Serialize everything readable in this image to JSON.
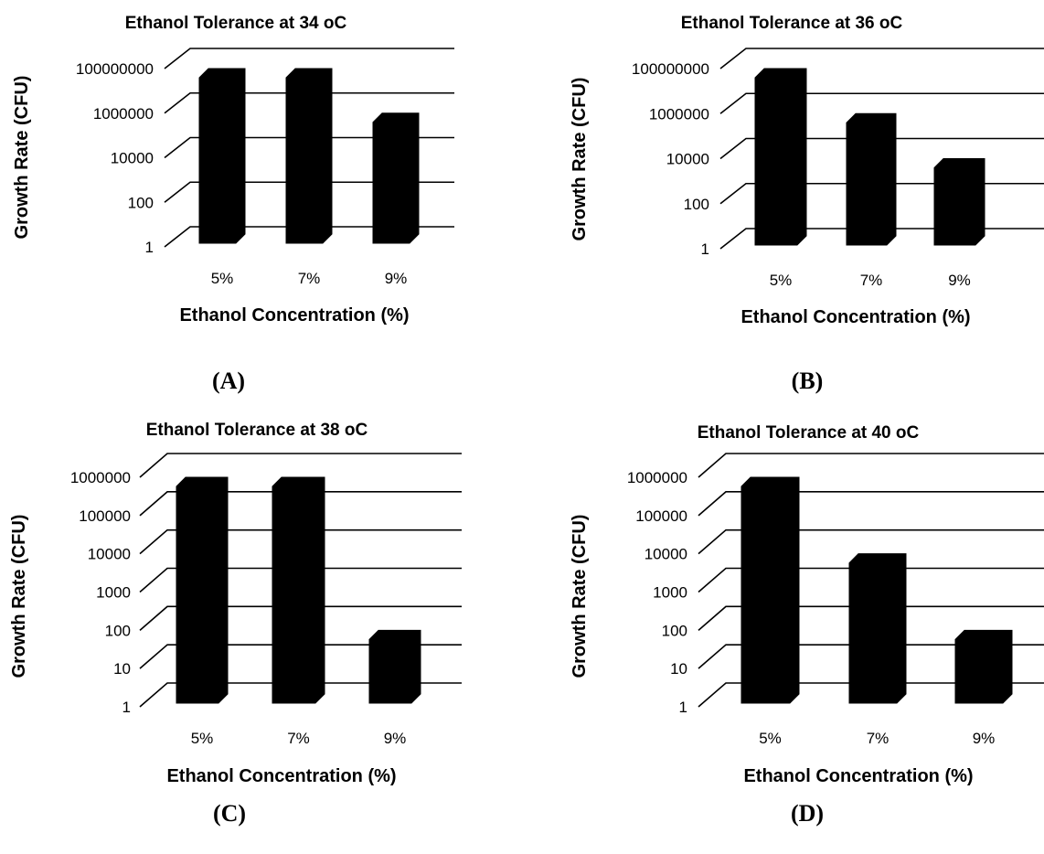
{
  "chart_data": [
    {
      "type": "bar",
      "panel_label": "(A)",
      "title": "Ethanol Tolerance at 34 oC",
      "xlabel": "Ethanol Concentration (%)",
      "ylabel": "Growth Rate (CFU)",
      "categories": [
        "5%",
        "7%",
        "9%"
      ],
      "values": [
        100000000,
        100000000,
        1000000
      ],
      "y_scale": "log",
      "ylim": [
        1,
        100000000
      ],
      "y_ticks": [
        "1",
        "100",
        "10000",
        "1000000",
        "100000000"
      ],
      "bar_color": "#000000",
      "grid": true
    },
    {
      "type": "bar",
      "panel_label": "(B)",
      "title": "Ethanol Tolerance at 36 oC",
      "xlabel": "Ethanol Concentration (%)",
      "ylabel": "Growth Rate (CFU)",
      "categories": [
        "5%",
        "7%",
        "9%"
      ],
      "values": [
        100000000,
        1000000,
        10000
      ],
      "y_scale": "log",
      "ylim": [
        1,
        100000000
      ],
      "y_ticks": [
        "1",
        "100",
        "10000",
        "1000000",
        "100000000"
      ],
      "bar_color": "#000000",
      "grid": true
    },
    {
      "type": "bar",
      "panel_label": "(C)",
      "title": "Ethanol Tolerance at 38 oC",
      "xlabel": "Ethanol Concentration (%)",
      "ylabel": "Growth Rate (CFU)",
      "categories": [
        "5%",
        "7%",
        "9%"
      ],
      "values": [
        1000000,
        1000000,
        100
      ],
      "y_scale": "log",
      "ylim": [
        1,
        1000000
      ],
      "y_ticks": [
        "1",
        "10",
        "100",
        "1000",
        "10000",
        "100000",
        "1000000"
      ],
      "bar_color": "#000000",
      "grid": true
    },
    {
      "type": "bar",
      "panel_label": "(D)",
      "title": "Ethanol Tolerance at 40 oC",
      "xlabel": "Ethanol Concentration (%)",
      "ylabel": "Growth Rate (CFU)",
      "categories": [
        "5%",
        "7%",
        "9%"
      ],
      "values": [
        1000000,
        10000,
        100
      ],
      "y_scale": "log",
      "ylim": [
        1,
        1000000
      ],
      "y_ticks": [
        "1",
        "10",
        "100",
        "1000",
        "10000",
        "100000",
        "1000000"
      ],
      "bar_color": "#000000",
      "grid": true
    }
  ]
}
